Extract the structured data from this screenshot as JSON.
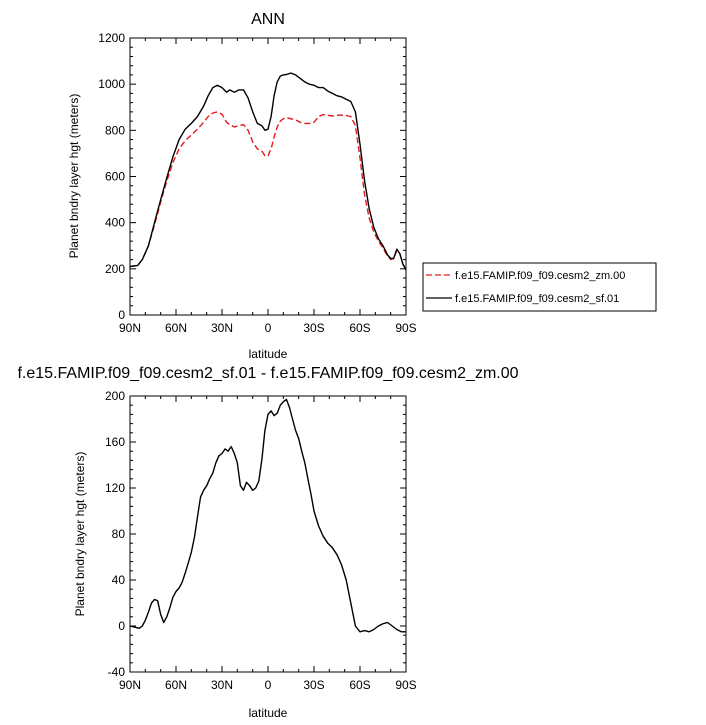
{
  "chart_data": [
    {
      "type": "line",
      "title": "ANN",
      "xlabel": "latitude",
      "ylabel": "Planet bndry layer hgt (meters)",
      "xlim": [
        90,
        -90
      ],
      "ylim": [
        0,
        1200
      ],
      "x_ticks": [
        90,
        60,
        30,
        0,
        -30,
        -60,
        -90
      ],
      "x_tick_labels": [
        "90N",
        "60N",
        "30N",
        "0",
        "30S",
        "60S",
        "90S"
      ],
      "y_ticks": [
        0,
        200,
        400,
        600,
        800,
        1000,
        1200
      ],
      "y_tick_labels": [
        "0",
        "200",
        "400",
        "600",
        "800",
        "1000",
        "1200"
      ],
      "grid": false,
      "legend_position": "right",
      "series": [
        {
          "name": "f.e15.FAMIP.f09_f09.cesm2_zm.00",
          "color": "#e41a1c",
          "dash": "dashed",
          "x": [
            90,
            85,
            82,
            78,
            74,
            70,
            66,
            62,
            58,
            54,
            50,
            46,
            42,
            39,
            36,
            33,
            30,
            27,
            25,
            22,
            19,
            16,
            13,
            10,
            7,
            4,
            2,
            0,
            -2,
            -4,
            -6,
            -8,
            -10,
            -12,
            -15,
            -18,
            -21,
            -24,
            -27,
            -30,
            -33,
            -36,
            -39,
            -42,
            -45,
            -48,
            -51,
            -54,
            -57,
            -60,
            -63,
            -66,
            -69,
            -72,
            -75,
            -78,
            -80,
            -82,
            -84,
            -86,
            -88,
            -90
          ],
          "y": [
            210,
            215,
            240,
            300,
            390,
            490,
            580,
            660,
            720,
            755,
            780,
            805,
            835,
            860,
            875,
            880,
            870,
            835,
            825,
            815,
            820,
            825,
            800,
            750,
            720,
            710,
            690,
            690,
            720,
            770,
            815,
            840,
            850,
            855,
            850,
            845,
            835,
            830,
            830,
            835,
            860,
            868,
            865,
            862,
            865,
            866,
            864,
            860,
            820,
            680,
            520,
            420,
            360,
            320,
            290,
            255,
            240,
            245,
            280,
            265,
            220,
            200
          ]
        },
        {
          "name": "f.e15.FAMIP.f09_f09.cesm2_sf.01",
          "color": "#000000",
          "dash": "solid",
          "x": [
            90,
            85,
            82,
            78,
            74,
            70,
            66,
            62,
            58,
            54,
            50,
            46,
            42,
            39,
            36,
            33,
            30,
            27,
            25,
            22,
            19,
            16,
            13,
            10,
            7,
            4,
            2,
            0,
            -2,
            -4,
            -6,
            -8,
            -10,
            -12,
            -15,
            -18,
            -21,
            -24,
            -27,
            -30,
            -33,
            -36,
            -39,
            -42,
            -45,
            -48,
            -51,
            -54,
            -57,
            -60,
            -63,
            -66,
            -69,
            -72,
            -75,
            -78,
            -80,
            -82,
            -84,
            -86,
            -88,
            -90
          ],
          "y": [
            210,
            215,
            240,
            300,
            400,
            500,
            595,
            685,
            760,
            805,
            830,
            860,
            905,
            950,
            985,
            995,
            985,
            965,
            975,
            965,
            975,
            975,
            940,
            880,
            830,
            820,
            800,
            805,
            860,
            950,
            1010,
            1035,
            1040,
            1042,
            1048,
            1040,
            1025,
            1010,
            1000,
            995,
            985,
            985,
            970,
            960,
            950,
            945,
            935,
            925,
            880,
            740,
            580,
            460,
            380,
            330,
            300,
            260,
            245,
            245,
            285,
            265,
            220,
            195
          ]
        }
      ]
    },
    {
      "type": "line",
      "title": "f.e15.FAMIP.f09_f09.cesm2_sf.01 - f.e15.FAMIP.f09_f09.cesm2_zm.00",
      "xlabel": "latitude",
      "ylabel": "Planet bndry layer hgt (meters)",
      "xlim": [
        90,
        -90
      ],
      "ylim": [
        -40,
        200
      ],
      "x_ticks": [
        90,
        60,
        30,
        0,
        -30,
        -60,
        -90
      ],
      "x_tick_labels": [
        "90N",
        "60N",
        "30N",
        "0",
        "30S",
        "60S",
        "90S"
      ],
      "y_ticks": [
        -40,
        0,
        40,
        80,
        120,
        160,
        200
      ],
      "y_tick_labels": [
        "-40",
        "0",
        "40",
        "80",
        "120",
        "160",
        "200"
      ],
      "grid": false,
      "series": [
        {
          "color": "#000000",
          "dash": "solid",
          "x": [
            90,
            87,
            84,
            82,
            80,
            78,
            76,
            74,
            72,
            70,
            68,
            66,
            64,
            62,
            60,
            58,
            56,
            54,
            52,
            50,
            48,
            46,
            44,
            42,
            40,
            38,
            36,
            34,
            32,
            30,
            28,
            26,
            24,
            22,
            20,
            18,
            16,
            14,
            12,
            10,
            8,
            6,
            4,
            2,
            0,
            -2,
            -4,
            -6,
            -8,
            -10,
            -12,
            -14,
            -16,
            -18,
            -20,
            -22,
            -24,
            -26,
            -28,
            -30,
            -33,
            -36,
            -39,
            -42,
            -45,
            -48,
            -51,
            -54,
            -57,
            -60,
            -63,
            -66,
            -69,
            -72,
            -75,
            -78,
            -81,
            -84,
            -87,
            -90
          ],
          "y": [
            0,
            -1,
            -2,
            0,
            5,
            12,
            20,
            23,
            22,
            10,
            3,
            8,
            16,
            25,
            30,
            33,
            38,
            46,
            55,
            64,
            77,
            95,
            112,
            118,
            122,
            128,
            133,
            142,
            148,
            150,
            154,
            152,
            156,
            150,
            142,
            122,
            118,
            125,
            122,
            118,
            120,
            126,
            145,
            170,
            184,
            187,
            183,
            185,
            192,
            195,
            197,
            190,
            180,
            170,
            163,
            152,
            142,
            128,
            115,
            100,
            87,
            78,
            72,
            68,
            62,
            53,
            40,
            20,
            0,
            -5,
            -4,
            -5,
            -3,
            0,
            2,
            3,
            0,
            -3,
            -5,
            -5
          ]
        }
      ]
    }
  ]
}
